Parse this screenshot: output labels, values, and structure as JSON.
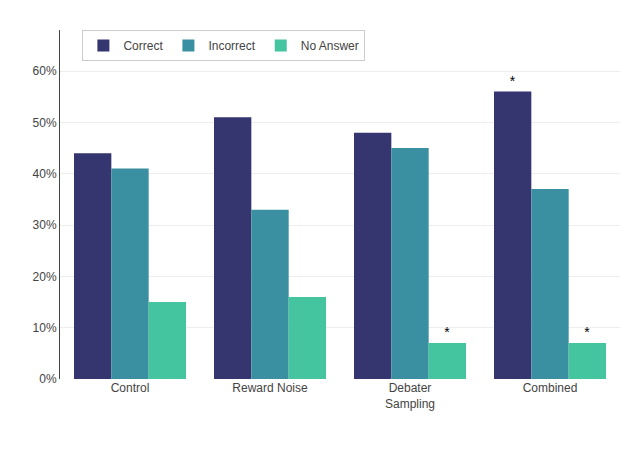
{
  "chart_data": {
    "type": "bar",
    "categories": [
      "Control",
      "Reward Noise",
      "Debater\nSampling",
      "Combined"
    ],
    "series": [
      {
        "name": "Correct",
        "color": "#353570",
        "values": [
          0.44,
          0.51,
          0.48,
          0.56
        ]
      },
      {
        "name": "Incorrect",
        "color": "#3a8fa0",
        "values": [
          0.41,
          0.33,
          0.45,
          0.37
        ]
      },
      {
        "name": "No Answer",
        "color": "#45c4a0",
        "values": [
          0.15,
          0.16,
          0.07,
          0.07
        ]
      }
    ],
    "ylim": [
      0,
      0.68
    ],
    "yticks": [
      {
        "value": 0.0,
        "label": "0%"
      },
      {
        "value": 0.1,
        "label": "10%"
      },
      {
        "value": 0.2,
        "label": "20%"
      },
      {
        "value": 0.3,
        "label": "30%"
      },
      {
        "value": 0.4,
        "label": "40%"
      },
      {
        "value": 0.5,
        "label": "50%"
      },
      {
        "value": 0.6,
        "label": "60%"
      }
    ],
    "annotations": [
      {
        "text": "*",
        "series": "No Answer",
        "category": "Debater\nSampling"
      },
      {
        "text": "*",
        "series": "No Answer",
        "category": "Combined"
      },
      {
        "text": "*",
        "series": "Correct",
        "category": "Combined"
      }
    ],
    "grid": true,
    "legend": "upper left"
  }
}
